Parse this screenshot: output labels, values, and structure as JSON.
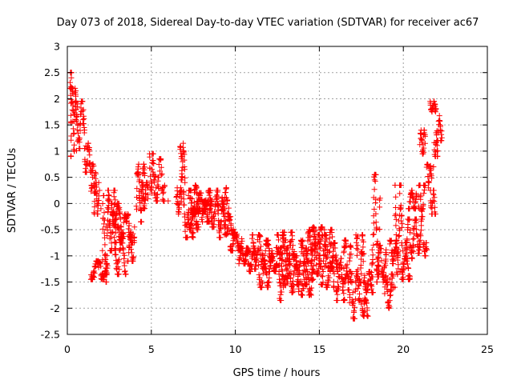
{
  "chart_data": {
    "type": "scatter",
    "title": "Day 073 of 2018, Sidereal Day-to-day VTEC variation (SDTVAR) for receiver ac67",
    "xlabel": "GPS time / hours",
    "ylabel": "SDTVAR / TECUs",
    "xlim": [
      0,
      25
    ],
    "ylim": [
      -2.5,
      3
    ],
    "x_ticks": [
      0,
      5,
      10,
      15,
      20,
      25
    ],
    "x_tick_labels": [
      "0",
      "5",
      "10",
      "15",
      "20",
      "25"
    ],
    "y_ticks": [
      3,
      2.5,
      2,
      1.5,
      1,
      0.5,
      0,
      -0.5,
      -1,
      -1.5,
      -2,
      -2.5
    ],
    "y_tick_labels": [
      "3",
      "2.5",
      "2",
      "1.5",
      "1",
      "0.5",
      "0",
      "-0.5",
      "-1",
      "-1.5",
      "-2",
      "-2.5"
    ],
    "grid": true,
    "marker": "+",
    "marker_color": "#ff0000",
    "series": [
      {
        "name": "SDTVAR",
        "trace": [
          [
            0.2,
            2.5
          ],
          [
            0.3,
            2.1
          ],
          [
            0.4,
            1.7
          ],
          [
            0.5,
            2.05
          ],
          [
            0.6,
            1.85
          ],
          [
            0.8,
            1.7
          ],
          [
            1.0,
            1.45
          ],
          [
            1.1,
            1.1
          ],
          [
            1.3,
            0.75
          ],
          [
            1.5,
            0.5
          ],
          [
            1.7,
            0.2
          ],
          [
            2.0,
            -0.1
          ],
          [
            2.3,
            -0.45
          ],
          [
            2.6,
            -0.55
          ],
          [
            2.9,
            -0.4
          ],
          [
            3.2,
            -0.5
          ],
          [
            3.5,
            -0.35
          ],
          [
            3.8,
            -0.55
          ],
          [
            4.0,
            -0.45
          ],
          [
            4.3,
            0.45
          ],
          [
            4.5,
            0.1
          ],
          [
            4.8,
            0.3
          ],
          [
            5.1,
            0.6
          ],
          [
            5.4,
            0.5
          ],
          [
            5.7,
            0.3
          ],
          [
            6.0,
            0.05
          ],
          [
            6.5,
            0.0
          ],
          [
            6.8,
            0.9
          ],
          [
            7.0,
            0.4
          ],
          [
            7.3,
            0.1
          ],
          [
            7.6,
            -0.2
          ],
          [
            7.9,
            0.05
          ],
          [
            8.2,
            -0.1
          ],
          [
            8.5,
            0.1
          ],
          [
            8.8,
            -0.2
          ],
          [
            9.1,
            -0.35
          ],
          [
            9.4,
            -0.25
          ],
          [
            9.8,
            -0.5
          ],
          [
            10.2,
            -0.8
          ],
          [
            10.6,
            -1.0
          ],
          [
            11.0,
            -1.05
          ],
          [
            11.4,
            -0.9
          ],
          [
            11.8,
            -1.2
          ],
          [
            12.2,
            -1.1
          ],
          [
            12.6,
            -1.3
          ],
          [
            13.0,
            -1.1
          ],
          [
            13.4,
            -1.0
          ],
          [
            13.8,
            -1.2
          ],
          [
            14.2,
            -1.3
          ],
          [
            14.6,
            -0.9
          ],
          [
            15.0,
            -1.05
          ],
          [
            15.4,
            -1.2
          ],
          [
            15.8,
            -1.0
          ],
          [
            16.2,
            -1.25
          ],
          [
            16.6,
            -1.35
          ],
          [
            17.0,
            -1.7
          ],
          [
            17.4,
            -1.45
          ],
          [
            17.8,
            -1.65
          ],
          [
            18.1,
            -1.55
          ],
          [
            18.4,
            -1.25
          ],
          [
            18.8,
            -1.4
          ],
          [
            19.2,
            -1.45
          ],
          [
            19.5,
            -1.6
          ],
          [
            19.8,
            -1.3
          ],
          [
            20.2,
            -0.95
          ],
          [
            20.6,
            -0.8
          ],
          [
            21.0,
            -0.7
          ],
          [
            21.3,
            -0.9
          ],
          [
            21.5,
            0.3
          ],
          [
            21.8,
            0.7
          ],
          [
            22.0,
            1.2
          ],
          [
            22.2,
            1.4
          ]
        ],
        "segments": [
          [
            0.18,
            0.25,
            0.9,
            2.5
          ],
          [
            0.3,
            0.55,
            1.0,
            2.2
          ],
          [
            0.5,
            1.05,
            1.05,
            1.95
          ],
          [
            1.05,
            1.45,
            0.6,
            1.15
          ],
          [
            1.4,
            1.7,
            0.2,
            0.75
          ],
          [
            1.6,
            1.9,
            -0.2,
            0.4
          ],
          [
            1.4,
            2.4,
            -1.45,
            -1.1
          ],
          [
            2.1,
            2.5,
            -1.5,
            0.15
          ],
          [
            2.4,
            2.9,
            -0.9,
            0.25
          ],
          [
            2.6,
            3.2,
            -0.45,
            0.0
          ],
          [
            2.8,
            3.5,
            -1.35,
            -0.65
          ],
          [
            3.0,
            3.9,
            -0.75,
            -0.2
          ],
          [
            3.6,
            4.0,
            -1.1,
            -0.55
          ],
          [
            4.1,
            4.6,
            -0.35,
            0.75
          ],
          [
            4.4,
            4.8,
            -0.1,
            0.4
          ],
          [
            4.9,
            5.2,
            0.2,
            0.95
          ],
          [
            5.2,
            5.8,
            0.05,
            0.85
          ],
          [
            6.5,
            6.8,
            -0.2,
            0.3
          ],
          [
            6.7,
            7.0,
            0.45,
            1.15
          ],
          [
            6.9,
            7.5,
            -0.65,
            0.25
          ],
          [
            7.2,
            7.8,
            -0.5,
            -0.1
          ],
          [
            7.4,
            7.9,
            -0.2,
            0.35
          ],
          [
            7.6,
            8.3,
            -0.15,
            0.2
          ],
          [
            8.0,
            8.6,
            -0.35,
            0.05
          ],
          [
            8.3,
            9.0,
            -0.45,
            0.25
          ],
          [
            8.9,
            9.4,
            -0.65,
            0.05
          ],
          [
            9.2,
            9.6,
            -0.2,
            0.3
          ],
          [
            9.4,
            9.9,
            -0.6,
            -0.25
          ],
          [
            9.7,
            10.4,
            -0.9,
            -0.55
          ],
          [
            10.2,
            10.8,
            -1.15,
            -0.85
          ],
          [
            10.6,
            11.2,
            -1.3,
            -0.85
          ],
          [
            11.0,
            11.6,
            -1.25,
            -0.6
          ],
          [
            11.4,
            12.0,
            -1.6,
            -1.15
          ],
          [
            11.6,
            12.2,
            -1.1,
            -0.7
          ],
          [
            12.0,
            12.5,
            -1.3,
            -0.95
          ],
          [
            12.4,
            12.9,
            -1.85,
            -0.6
          ],
          [
            12.6,
            13.2,
            -1.6,
            -0.85
          ],
          [
            12.8,
            13.5,
            -1.5,
            -0.55
          ],
          [
            13.2,
            13.8,
            -1.7,
            -1.0
          ],
          [
            13.6,
            14.3,
            -1.55,
            -0.7
          ],
          [
            13.9,
            14.6,
            -1.75,
            -0.85
          ],
          [
            14.2,
            14.8,
            -1.45,
            -0.5
          ],
          [
            14.5,
            15.2,
            -1.35,
            -0.45
          ],
          [
            14.9,
            15.5,
            -1.55,
            -0.6
          ],
          [
            15.3,
            15.9,
            -1.6,
            -0.5
          ],
          [
            15.6,
            16.1,
            -1.3,
            -0.75
          ],
          [
            16.0,
            16.6,
            -1.85,
            -1.05
          ],
          [
            16.4,
            16.9,
            -1.65,
            -0.7
          ],
          [
            16.8,
            17.3,
            -2.2,
            -1.3
          ],
          [
            17.2,
            17.7,
            -1.85,
            -0.6
          ],
          [
            17.5,
            17.9,
            -2.15,
            -1.8
          ],
          [
            17.7,
            18.2,
            -1.7,
            -1.3
          ],
          [
            18.1,
            18.6,
            -1.4,
            0.55
          ],
          [
            18.4,
            19.0,
            -1.5,
            -0.8
          ],
          [
            18.9,
            19.4,
            -2.0,
            -1.35
          ],
          [
            19.2,
            19.7,
            -1.15,
            -0.7
          ],
          [
            19.5,
            20.0,
            -1.35,
            0.35
          ],
          [
            19.9,
            20.4,
            -1.45,
            -0.75
          ],
          [
            20.1,
            20.6,
            -1.05,
            -0.3
          ],
          [
            20.3,
            20.8,
            -0.1,
            0.25
          ],
          [
            20.6,
            21.1,
            -0.95,
            -0.3
          ],
          [
            20.9,
            21.3,
            -0.25,
            0.35
          ],
          [
            21.0,
            21.3,
            0.95,
            1.4
          ],
          [
            21.2,
            21.4,
            -1.0,
            -0.75
          ],
          [
            21.4,
            21.7,
            0.4,
            0.75
          ],
          [
            21.6,
            21.9,
            -0.2,
            0.25
          ],
          [
            21.6,
            21.95,
            1.75,
            1.95
          ],
          [
            21.85,
            22.05,
            0.9,
            1.35
          ],
          [
            22.0,
            22.3,
            1.2,
            1.7
          ]
        ]
      }
    ]
  }
}
